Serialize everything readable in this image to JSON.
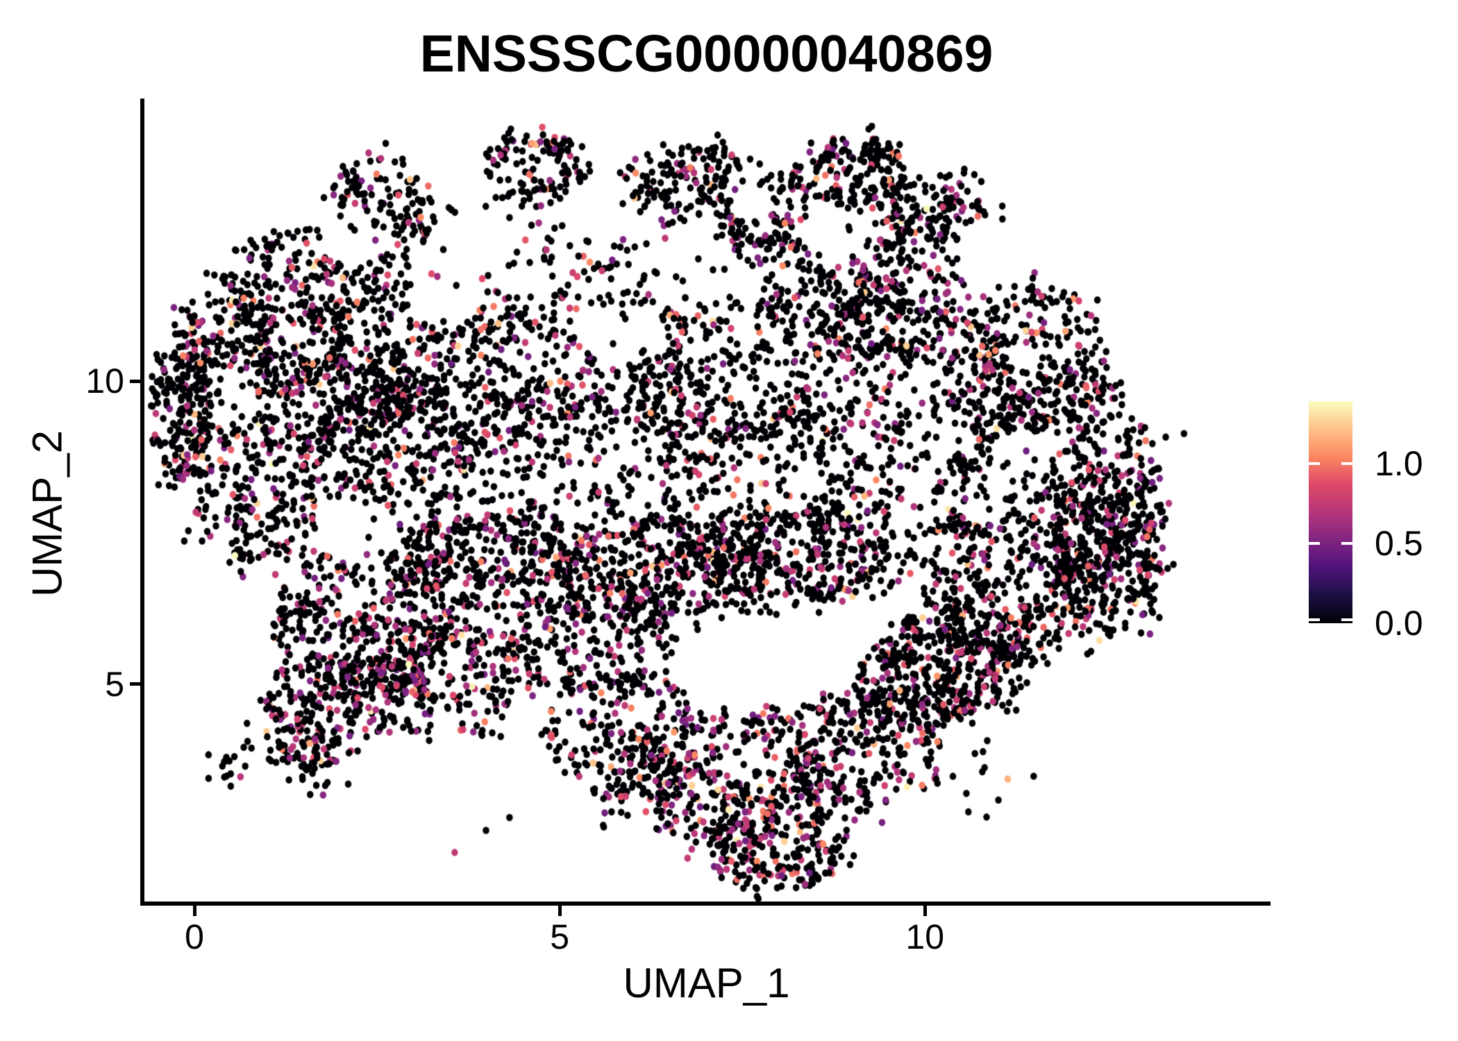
{
  "chart_data": {
    "type": "scatter",
    "title": "ENSSSCG00000040869",
    "xlabel": "UMAP_1",
    "ylabel": "UMAP_2",
    "xlim": [
      -0.713,
      14.731
    ],
    "ylim": [
      1.384,
      14.657
    ],
    "x_ticks": [
      {
        "value": 0,
        "label": "0"
      },
      {
        "value": 5,
        "label": "5"
      },
      {
        "value": 10,
        "label": "10"
      }
    ],
    "y_ticks": [
      {
        "value": 5,
        "label": "5"
      },
      {
        "value": 10,
        "label": "10"
      }
    ],
    "grid": false,
    "background": "#ffffff",
    "point_radius_px": 5,
    "n_points_estimate": 9800,
    "colormap": {
      "name": "magma",
      "anchors": [
        "#000004",
        "#1C1044",
        "#4F127B",
        "#812581",
        "#B5367A",
        "#DE4968",
        "#FB8861",
        "#FEC287",
        "#FCFDBF"
      ]
    },
    "expression_distribution": {
      "zero_fraction": 0.81,
      "colored_levels": [
        {
          "range": [
            0.45,
            0.8
          ],
          "fraction": 0.13
        },
        {
          "range": [
            0.8,
            1.05
          ],
          "fraction": 0.045
        },
        {
          "range": [
            1.05,
            1.39
          ],
          "fraction": 0.015
        }
      ]
    },
    "clusters": {
      "columns": [
        "x",
        "y",
        "rx",
        "ry",
        "n",
        "hot"
      ],
      "rows": [
        [
          2.66,
          12.85,
          0.67,
          0.86,
          150,
          1.0
        ],
        [
          4.66,
          13.54,
          0.67,
          0.69,
          130,
          1.0
        ],
        [
          6.75,
          13.36,
          0.86,
          0.63,
          170,
          1.0
        ],
        [
          9.03,
          13.42,
          0.76,
          0.63,
          170,
          1.0
        ],
        [
          7.79,
          12.85,
          0.67,
          0.57,
          120,
          1.0
        ],
        [
          10.12,
          12.85,
          0.76,
          0.57,
          130,
          1.0
        ],
        [
          1.43,
          11.71,
          1.05,
          0.8,
          210,
          1.0
        ],
        [
          0.48,
          10.56,
          0.76,
          0.8,
          240,
          1.4
        ],
        [
          -0.19,
          9.42,
          0.43,
          1.03,
          190,
          1.2
        ],
        [
          0.86,
          8.27,
          0.86,
          1.26,
          270,
          1.2
        ],
        [
          1.9,
          9.87,
          1.14,
          0.92,
          250,
          1.0
        ],
        [
          2.66,
          8.96,
          1.14,
          1.03,
          270,
          1.0
        ],
        [
          3.99,
          7.13,
          1.33,
          0.92,
          390,
          1.1
        ],
        [
          6.37,
          6.9,
          1.52,
          0.8,
          430,
          1.1
        ],
        [
          8.27,
          7.13,
          1.24,
          0.8,
          370,
          1.1
        ],
        [
          4.94,
          10.56,
          2.28,
          1.83,
          430,
          0.9
        ],
        [
          7.79,
          10.56,
          2.09,
          1.83,
          460,
          0.9
        ],
        [
          5.89,
          8.84,
          2.47,
          1.37,
          430,
          1.0
        ],
        [
          9.7,
          9.42,
          1.62,
          2.06,
          430,
          1.0
        ],
        [
          3.04,
          10.79,
          1.43,
          1.26,
          270,
          1.0
        ],
        [
          11.41,
          10.33,
          1.14,
          1.26,
          310,
          1.0
        ],
        [
          12.17,
          8.27,
          1.05,
          1.6,
          390,
          1.0
        ],
        [
          12.55,
          7.13,
          0.76,
          1.26,
          310,
          1.0
        ],
        [
          11.12,
          6.56,
          1.14,
          1.14,
          340,
          1.0
        ],
        [
          10.46,
          5.41,
          1.05,
          0.92,
          270,
          1.0
        ],
        [
          2.28,
          5.98,
          1.24,
          1.26,
          340,
          1.3
        ],
        [
          3.23,
          5.07,
          1.14,
          1.03,
          290,
          1.3
        ],
        [
          1.71,
          4.61,
          0.76,
          0.92,
          170,
          1.2
        ],
        [
          1.52,
          3.92,
          0.48,
          0.57,
          70,
          1.2
        ],
        [
          5.89,
          4.15,
          1.14,
          1.03,
          250,
          1.2
        ],
        [
          7.32,
          3.47,
          1.33,
          1.14,
          340,
          1.5
        ],
        [
          7.98,
          2.3,
          0.95,
          0.7,
          230,
          1.6
        ],
        [
          9.03,
          3.92,
          1.05,
          1.03,
          270,
          1.2
        ],
        [
          9.89,
          5.07,
          0.86,
          0.8,
          190,
          1.0
        ],
        [
          5.42,
          5.64,
          1.14,
          0.8,
          210,
          1.0
        ],
        [
          9.13,
          11.48,
          1.43,
          1.14,
          290,
          1.0
        ],
        [
          0.95,
          3.7,
          0.86,
          0.8,
          20,
          1.0
        ],
        [
          3.99,
          2.78,
          0.76,
          0.69,
          15,
          1.0
        ],
        [
          10.55,
          3.47,
          0.76,
          0.69,
          20,
          1.0
        ]
      ]
    },
    "holes": {
      "columns": [
        "x",
        "y",
        "rx",
        "ry"
      ],
      "rows": [
        [
          3.42,
          11.48,
          0.52,
          0.63
        ],
        [
          8.75,
          12.51,
          0.52,
          0.46
        ],
        [
          6.84,
          11.82,
          0.67,
          0.57
        ],
        [
          5.8,
          10.79,
          0.57,
          0.51
        ],
        [
          4.28,
          3.01,
          1.05,
          0.92
        ],
        [
          7.79,
          5.3,
          1.33,
          0.63
        ],
        [
          2.09,
          7.47,
          0.38,
          0.46
        ],
        [
          11.31,
          8.73,
          0.43,
          0.46
        ],
        [
          5.61,
          12.85,
          0.38,
          0.51
        ],
        [
          7.6,
          13.08,
          0.33,
          0.46
        ],
        [
          3.8,
          12.28,
          0.38,
          0.46
        ],
        [
          2.09,
          12.39,
          0.38,
          0.46
        ],
        [
          0.57,
          10.05,
          0.29,
          0.4
        ]
      ]
    },
    "legend": {
      "limits": [
        0,
        1.39
      ],
      "ticks": [
        {
          "value": 1.0,
          "label": "1.0"
        },
        {
          "value": 0.5,
          "label": "0.5"
        },
        {
          "value": 0.0,
          "label": "0.0"
        }
      ]
    }
  }
}
